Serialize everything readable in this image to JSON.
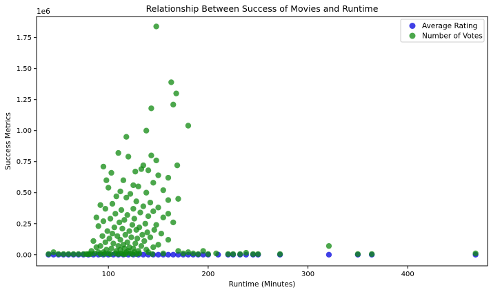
{
  "chart_data": {
    "type": "scatter",
    "title": "Relationship Between Success of Movies and Runtime",
    "xlabel": "Runtime (Minutes)",
    "ylabel": "Success Metrics",
    "y_offset_label": "1e6",
    "xlim": [
      28,
      480
    ],
    "ylim": [
      -0.09,
      1.92
    ],
    "x_ticks": [
      100,
      200,
      300,
      400
    ],
    "x_tick_labels": [
      "100",
      "200",
      "300",
      "400"
    ],
    "y_ticks": [
      0.0,
      0.25,
      0.5,
      0.75,
      1.0,
      1.25,
      1.5,
      1.75
    ],
    "y_tick_labels": [
      "0.00",
      "0.25",
      "0.50",
      "0.75",
      "1.00",
      "1.25",
      "1.50",
      "1.75"
    ],
    "legend_position": "top-right",
    "grid": false,
    "series": [
      {
        "name": "Average Rating",
        "color": "#0000dd",
        "x": [
          40,
          45,
          50,
          55,
          60,
          65,
          70,
          75,
          80,
          85,
          90,
          95,
          100,
          105,
          110,
          115,
          120,
          125,
          130,
          135,
          140,
          145,
          150,
          155,
          160,
          165,
          170,
          175,
          180,
          185,
          190,
          195,
          200,
          210,
          220,
          225,
          232,
          238,
          245,
          250,
          272,
          321,
          350,
          364,
          468
        ],
        "y": [
          0,
          0,
          0,
          0,
          0,
          0,
          0,
          0,
          0,
          0,
          0,
          0,
          0,
          0,
          0,
          0,
          0,
          0,
          0,
          0,
          0,
          0,
          0,
          0,
          0,
          0,
          0,
          0,
          0,
          0,
          0,
          0,
          0,
          0,
          0,
          0,
          0,
          0,
          0,
          0,
          0,
          0,
          0,
          0,
          0
        ]
      },
      {
        "name": "Number of Votes",
        "color": "#108a10",
        "x": [
          148,
          163,
          168,
          165,
          143,
          180,
          138,
          118,
          169,
          110,
          95,
          143,
          120,
          133,
          148,
          127,
          135,
          150,
          103,
          140,
          160,
          145,
          115,
          98,
          125,
          155,
          100,
          130,
          138,
          112,
          122,
          160,
          170,
          108,
          118,
          142,
          128,
          92,
          104,
          135,
          150,
          97,
          113,
          125,
          145,
          160,
          132,
          107,
          119,
          88,
          140,
          155,
          102,
          126,
          116,
          95,
          165,
          111,
          137,
          148,
          90,
          124,
          131,
          106,
          114,
          146,
          128,
          99,
          121,
          139,
          153,
          104,
          117,
          134,
          94,
          109,
          142,
          123,
          101,
          129,
          160,
          112,
          85,
          136,
          119,
          97,
          105,
          127,
          115,
          150,
          92,
          110,
          133,
          121,
          88,
          145,
          103,
          125,
          116,
          98,
          138,
          112,
          83,
          130,
          120,
          108,
          90,
          118,
          140,
          95,
          126,
          113,
          100,
          155,
          86,
          122,
          107,
          131,
          80,
          115,
          96,
          144,
          110,
          124,
          102,
          128,
          92,
          117,
          170,
          180,
          175,
          185,
          190,
          195,
          40,
          45,
          50,
          55,
          60,
          65,
          70,
          75,
          78,
          82,
          200,
          208,
          220,
          225,
          232,
          238,
          245,
          250,
          272,
          321,
          350,
          364,
          468
        ],
        "y": [
          1.84,
          1.39,
          1.3,
          1.21,
          1.18,
          1.04,
          1.0,
          0.95,
          0.72,
          0.82,
          0.71,
          0.8,
          0.79,
          0.69,
          0.76,
          0.67,
          0.72,
          0.64,
          0.66,
          0.68,
          0.62,
          0.58,
          0.6,
          0.6,
          0.56,
          0.52,
          0.54,
          0.55,
          0.5,
          0.51,
          0.49,
          0.44,
          0.45,
          0.47,
          0.46,
          0.42,
          0.43,
          0.4,
          0.41,
          0.39,
          0.38,
          0.37,
          0.36,
          0.37,
          0.35,
          0.33,
          0.34,
          0.33,
          0.32,
          0.3,
          0.31,
          0.3,
          0.29,
          0.29,
          0.28,
          0.27,
          0.26,
          0.26,
          0.25,
          0.24,
          0.23,
          0.24,
          0.22,
          0.22,
          0.21,
          0.2,
          0.2,
          0.19,
          0.19,
          0.18,
          0.17,
          0.17,
          0.16,
          0.16,
          0.15,
          0.15,
          0.14,
          0.14,
          0.13,
          0.13,
          0.12,
          0.12,
          0.11,
          0.11,
          0.1,
          0.1,
          0.09,
          0.09,
          0.08,
          0.08,
          0.07,
          0.07,
          0.07,
          0.06,
          0.06,
          0.06,
          0.05,
          0.05,
          0.05,
          0.04,
          0.04,
          0.04,
          0.03,
          0.03,
          0.03,
          0.03,
          0.02,
          0.02,
          0.02,
          0.02,
          0.02,
          0.01,
          0.01,
          0.01,
          0.01,
          0.01,
          0.01,
          0.01,
          0.005,
          0.005,
          0.005,
          0.005,
          0.005,
          0.005,
          0.005,
          0.005,
          0.005,
          0.005,
          0.03,
          0.02,
          0.01,
          0.01,
          0.005,
          0.03,
          0.005,
          0.02,
          0.005,
          0.005,
          0.005,
          0.005,
          0.005,
          0.005,
          0.005,
          0.005,
          0.005,
          0.01,
          0.005,
          0.005,
          0.005,
          0.015,
          0.005,
          0.005,
          0.005,
          0.07,
          0.005,
          0.005,
          0.01
        ]
      }
    ]
  }
}
